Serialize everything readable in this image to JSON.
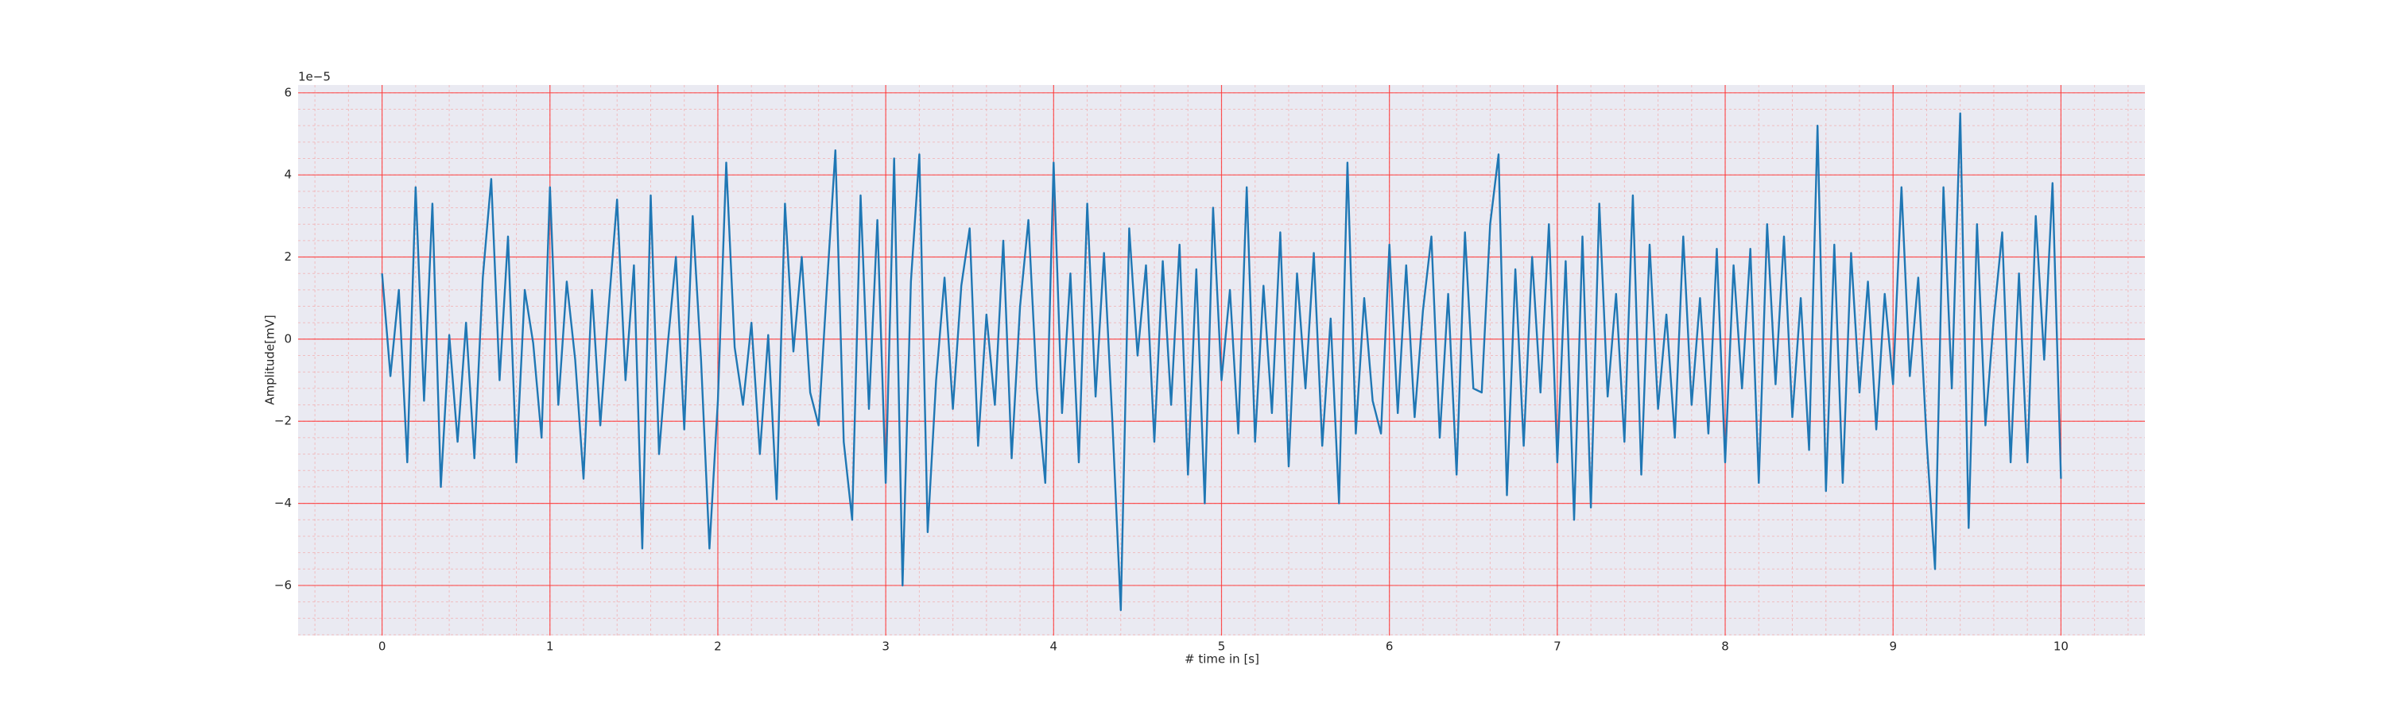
{
  "chart_data": {
    "type": "line",
    "xlabel": "# time in [s]",
    "ylabel": "Amplitude[mV]",
    "offset_label": "1e−5",
    "color": "#1f77b4",
    "grid": true,
    "minor_grid": true,
    "xlim": [
      -0.5,
      10.5
    ],
    "ylim": [
      -7.22,
      6.19
    ],
    "xticks": [
      0,
      1,
      2,
      3,
      4,
      5,
      6,
      7,
      8,
      9,
      10
    ],
    "yticks": [
      {
        "value": -6,
        "label": "−6"
      },
      {
        "value": -4,
        "label": "−4"
      },
      {
        "value": -2,
        "label": "−2"
      },
      0,
      2,
      4,
      6
    ],
    "x": [
      0,
      0.05,
      0.1,
      0.15,
      0.2,
      0.25,
      0.3,
      0.35,
      0.4,
      0.45,
      0.5,
      0.55,
      0.6,
      0.65,
      0.7,
      0.75,
      0.8,
      0.85,
      0.9,
      0.95,
      1,
      1.05,
      1.1,
      1.15,
      1.2,
      1.25,
      1.3,
      1.35,
      1.4,
      1.45,
      1.5,
      1.55,
      1.6,
      1.65,
      1.7,
      1.75,
      1.8,
      1.85,
      1.9,
      1.95,
      2,
      2.05,
      2.1,
      2.15,
      2.2,
      2.25,
      2.3,
      2.35,
      2.4,
      2.45,
      2.5,
      2.55,
      2.6,
      2.65,
      2.7,
      2.75,
      2.8,
      2.85,
      2.9,
      2.95,
      3,
      3.05,
      3.1,
      3.15,
      3.2,
      3.25,
      3.3,
      3.35,
      3.4,
      3.45,
      3.5,
      3.55,
      3.6,
      3.65,
      3.7,
      3.75,
      3.8,
      3.85,
      3.9,
      3.95,
      4,
      4.05,
      4.1,
      4.15,
      4.2,
      4.25,
      4.3,
      4.35,
      4.4,
      4.45,
      4.5,
      4.55,
      4.6,
      4.65,
      4.7,
      4.75,
      4.8,
      4.85,
      4.9,
      4.95,
      5,
      5.05,
      5.1,
      5.15,
      5.2,
      5.25,
      5.3,
      5.35,
      5.4,
      5.45,
      5.5,
      5.55,
      5.6,
      5.65,
      5.7,
      5.75,
      5.8,
      5.85,
      5.9,
      5.95,
      6,
      6.05,
      6.1,
      6.15,
      6.2,
      6.25,
      6.3,
      6.35,
      6.4,
      6.45,
      6.5,
      6.55,
      6.6,
      6.65,
      6.7,
      6.75,
      6.8,
      6.85,
      6.9,
      6.95,
      7,
      7.05,
      7.1,
      7.15,
      7.2,
      7.25,
      7.3,
      7.35,
      7.4,
      7.45,
      7.5,
      7.55,
      7.6,
      7.65,
      7.7,
      7.75,
      7.8,
      7.85,
      7.9,
      7.95,
      8,
      8.05,
      8.1,
      8.15,
      8.2,
      8.25,
      8.3,
      8.35,
      8.4,
      8.45,
      8.5,
      8.55,
      8.6,
      8.65,
      8.7,
      8.75,
      8.8,
      8.85,
      8.9,
      8.95,
      9,
      9.05,
      9.1,
      9.15,
      9.2,
      9.25,
      9.3,
      9.35,
      9.4,
      9.45,
      9.5,
      9.55,
      9.6,
      9.65,
      9.7,
      9.75,
      9.8,
      9.85,
      9.9,
      9.95,
      10
    ],
    "values": [
      1.6,
      -0.9,
      1.2,
      -3.0,
      3.7,
      -1.5,
      3.3,
      -3.6,
      0.1,
      -2.5,
      0.4,
      -2.9,
      1.5,
      3.9,
      -1.0,
      2.5,
      -3.0,
      1.2,
      -0.1,
      -2.4,
      3.7,
      -1.6,
      1.4,
      -0.5,
      -3.4,
      1.2,
      -2.1,
      0.8,
      3.4,
      -1.0,
      1.8,
      -5.1,
      3.5,
      -2.8,
      -0.2,
      2.0,
      -2.2,
      3.0,
      -0.5,
      -5.1,
      -1.5,
      4.3,
      -0.2,
      -1.6,
      0.4,
      -2.8,
      0.1,
      -3.9,
      3.3,
      -0.3,
      2.0,
      -1.3,
      -2.1,
      1.3,
      4.6,
      -2.5,
      -4.4,
      3.5,
      -1.7,
      2.9,
      -3.5,
      4.4,
      -6.0,
      1.4,
      4.5,
      -4.7,
      -1.0,
      1.5,
      -1.7,
      1.3,
      2.7,
      -2.6,
      0.6,
      -1.6,
      2.4,
      -2.9,
      0.8,
      2.9,
      -1.2,
      -3.5,
      4.3,
      -1.8,
      1.6,
      -3.0,
      3.3,
      -1.4,
      2.1,
      -2.0,
      -6.6,
      2.7,
      -0.4,
      1.8,
      -2.5,
      1.9,
      -1.6,
      2.3,
      -3.3,
      1.7,
      -4.0,
      3.2,
      -1.0,
      1.2,
      -2.3,
      3.7,
      -2.5,
      1.3,
      -1.8,
      2.6,
      -3.1,
      1.6,
      -1.2,
      2.1,
      -2.6,
      0.5,
      -4.0,
      4.3,
      -2.3,
      1.0,
      -1.5,
      -2.3,
      2.3,
      -1.8,
      1.8,
      -1.9,
      0.7,
      2.5,
      -2.4,
      1.1,
      -3.3,
      2.6,
      -1.2,
      -1.3,
      2.8,
      4.5,
      -3.8,
      1.7,
      -2.6,
      2.0,
      -1.3,
      2.8,
      -3.0,
      1.9,
      -4.4,
      2.5,
      -4.1,
      3.3,
      -1.4,
      1.1,
      -2.5,
      3.5,
      -3.3,
      2.3,
      -1.7,
      0.6,
      -2.4,
      2.5,
      -1.6,
      1.0,
      -2.3,
      2.2,
      -3.0,
      1.8,
      -1.2,
      2.2,
      -3.5,
      2.8,
      -1.1,
      2.5,
      -1.9,
      1.0,
      -2.7,
      5.2,
      -3.7,
      2.3,
      -3.5,
      2.1,
      -1.3,
      1.4,
      -2.2,
      1.1,
      -1.1,
      3.7,
      -0.9,
      1.5,
      -2.5,
      -5.6,
      3.7,
      -1.2,
      5.5,
      -4.6,
      2.8,
      -2.1,
      0.5,
      2.6,
      -3.0,
      1.6,
      -3.0,
      3.0,
      -0.5,
      3.8,
      -3.4
    ]
  }
}
